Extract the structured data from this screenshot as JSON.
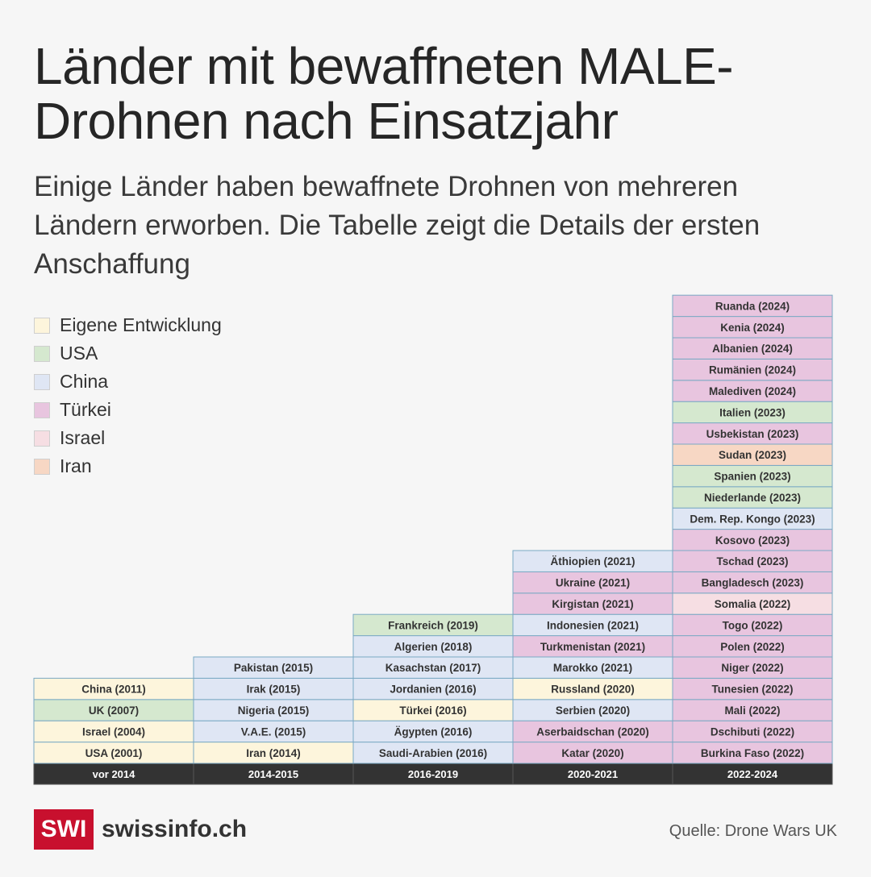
{
  "title": "Länder mit bewaffneten MALE-Drohnen nach Einsatzjahr",
  "subtitle": "Einige Länder haben bewaffnete Drohnen von mehreren Ländern erworben. Die Tabelle zeigt die Details der ersten Anschaffung",
  "legend": [
    {
      "key": "own",
      "label": "Eigene Entwicklung",
      "color": "#fdf5dc"
    },
    {
      "key": "usa",
      "label": "USA",
      "color": "#d5e8cf"
    },
    {
      "key": "china",
      "label": "China",
      "color": "#dfe6f4"
    },
    {
      "key": "turkey",
      "label": "Türkei",
      "color": "#e8c5df"
    },
    {
      "key": "israel",
      "label": "Israel",
      "color": "#f6dee3"
    },
    {
      "key": "iran",
      "label": "Iran",
      "color": "#f7d7c4"
    }
  ],
  "chart_data": {
    "type": "table",
    "categories": [
      "vor 2014",
      "2014-2015",
      "2016-2019",
      "2020-2021",
      "2022-2024"
    ],
    "columns": [
      {
        "period": "vor 2014",
        "entries": [
          {
            "label": "USA (2001)",
            "supplier": "own"
          },
          {
            "label": "Israel (2004)",
            "supplier": "own"
          },
          {
            "label": "UK (2007)",
            "supplier": "usa"
          },
          {
            "label": "China (2011)",
            "supplier": "own"
          }
        ]
      },
      {
        "period": "2014-2015",
        "entries": [
          {
            "label": "Iran (2014)",
            "supplier": "own"
          },
          {
            "label": "V.A.E. (2015)",
            "supplier": "china"
          },
          {
            "label": "Nigeria (2015)",
            "supplier": "china"
          },
          {
            "label": "Irak (2015)",
            "supplier": "china"
          },
          {
            "label": "Pakistan (2015)",
            "supplier": "china"
          }
        ]
      },
      {
        "period": "2016-2019",
        "entries": [
          {
            "label": "Saudi-Arabien (2016)",
            "supplier": "china"
          },
          {
            "label": "Ägypten (2016)",
            "supplier": "china"
          },
          {
            "label": "Türkei (2016)",
            "supplier": "own"
          },
          {
            "label": "Jordanien (2016)",
            "supplier": "china"
          },
          {
            "label": "Kasachstan (2017)",
            "supplier": "china"
          },
          {
            "label": "Algerien (2018)",
            "supplier": "china"
          },
          {
            "label": "Frankreich (2019)",
            "supplier": "usa"
          }
        ]
      },
      {
        "period": "2020-2021",
        "entries": [
          {
            "label": "Katar (2020)",
            "supplier": "turkey"
          },
          {
            "label": "Aserbaidschan (2020)",
            "supplier": "turkey"
          },
          {
            "label": "Serbien (2020)",
            "supplier": "china"
          },
          {
            "label": "Russland (2020)",
            "supplier": "own"
          },
          {
            "label": "Marokko (2021)",
            "supplier": "china"
          },
          {
            "label": "Turkmenistan (2021)",
            "supplier": "turkey"
          },
          {
            "label": "Indonesien (2021)",
            "supplier": "china"
          },
          {
            "label": "Kirgistan (2021)",
            "supplier": "turkey"
          },
          {
            "label": "Ukraine (2021)",
            "supplier": "turkey"
          },
          {
            "label": "Äthiopien (2021)",
            "supplier": "china"
          }
        ]
      },
      {
        "period": "2022-2024",
        "entries": [
          {
            "label": "Burkina Faso (2022)",
            "supplier": "turkey"
          },
          {
            "label": "Dschibuti (2022)",
            "supplier": "turkey"
          },
          {
            "label": "Mali (2022)",
            "supplier": "turkey"
          },
          {
            "label": "Tunesien (2022)",
            "supplier": "turkey"
          },
          {
            "label": "Niger (2022)",
            "supplier": "turkey"
          },
          {
            "label": "Polen (2022)",
            "supplier": "turkey"
          },
          {
            "label": "Togo (2022)",
            "supplier": "turkey"
          },
          {
            "label": "Somalia (2022)",
            "supplier": "israel"
          },
          {
            "label": "Bangladesch (2023)",
            "supplier": "turkey"
          },
          {
            "label": "Tschad (2023)",
            "supplier": "turkey"
          },
          {
            "label": "Kosovo (2023)",
            "supplier": "turkey"
          },
          {
            "label": "Dem. Rep. Kongo (2023)",
            "supplier": "china"
          },
          {
            "label": "Niederlande (2023)",
            "supplier": "usa"
          },
          {
            "label": "Spanien (2023)",
            "supplier": "usa"
          },
          {
            "label": "Sudan (2023)",
            "supplier": "iran"
          },
          {
            "label": "Usbekistan (2023)",
            "supplier": "turkey"
          },
          {
            "label": "Italien (2023)",
            "supplier": "usa"
          },
          {
            "label": "Malediven (2024)",
            "supplier": "turkey"
          },
          {
            "label": "Rumänien (2024)",
            "supplier": "turkey"
          },
          {
            "label": "Albanien (2024)",
            "supplier": "turkey"
          },
          {
            "label": "Kenia (2024)",
            "supplier": "turkey"
          },
          {
            "label": "Ruanda (2024)",
            "supplier": "turkey"
          }
        ]
      }
    ],
    "colors": {
      "own": "#fdf5dc",
      "usa": "#d5e8cf",
      "china": "#dfe6f4",
      "turkey": "#e8c5df",
      "israel": "#f6dee3",
      "iran": "#f7d7c4",
      "cell_border": "#7aa9c4",
      "header_bg": "#333333",
      "header_text": "#ffffff"
    }
  },
  "footer": {
    "logo_mark": "SWI",
    "logo_name": "swissinfo.ch",
    "source": "Quelle: Drone Wars UK"
  }
}
